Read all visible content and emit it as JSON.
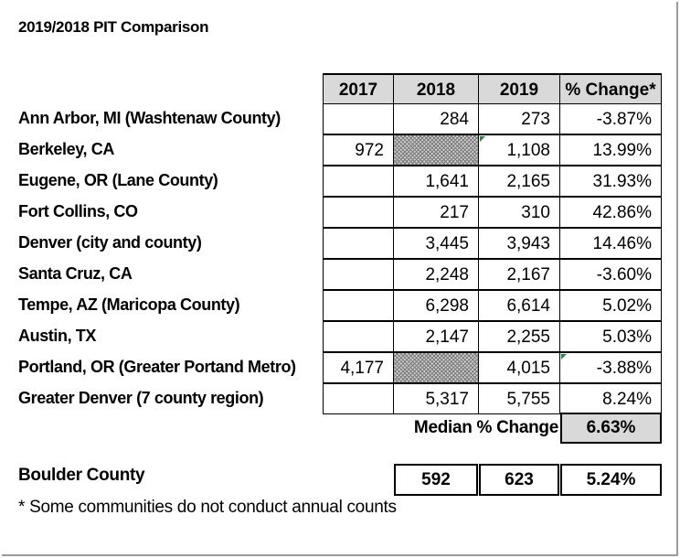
{
  "title": "2019/2018 PIT Comparison",
  "chart_data": {
    "type": "table",
    "title": "2019/2018 PIT Comparison",
    "columns": [
      "2017",
      "2018",
      "2019",
      "% Change*"
    ],
    "rows": [
      {
        "label": "Ann Arbor, MI (Washtenaw County)",
        "cells": [
          "",
          "284",
          "273",
          "-3.87%"
        ],
        "hatched": []
      },
      {
        "label": "Berkeley, CA",
        "cells": [
          "972",
          "",
          "1,108",
          "13.99%"
        ],
        "hatched": [
          1
        ],
        "flag": 2
      },
      {
        "label": "Eugene, OR (Lane County)",
        "cells": [
          "",
          "1,641",
          "2,165",
          "31.93%"
        ],
        "hatched": []
      },
      {
        "label": "Fort Collins, CO",
        "cells": [
          "",
          "217",
          "310",
          "42.86%"
        ],
        "hatched": []
      },
      {
        "label": "Denver (city and county)",
        "cells": [
          "",
          "3,445",
          "3,943",
          "14.46%"
        ],
        "hatched": []
      },
      {
        "label": "Santa Cruz, CA",
        "cells": [
          "",
          "2,248",
          "2,167",
          "-3.60%"
        ],
        "hatched": []
      },
      {
        "label": "Tempe, AZ (Maricopa County)",
        "cells": [
          "",
          "6,298",
          "6,614",
          "5.02%"
        ],
        "hatched": []
      },
      {
        "label": "Austin, TX",
        "cells": [
          "",
          "2,147",
          "2,255",
          "5.03%"
        ],
        "hatched": []
      },
      {
        "label": "Portland, OR (Greater Portand Metro)",
        "cells": [
          "4,177",
          "",
          "4,015",
          "-3.88%"
        ],
        "hatched": [
          1
        ],
        "flag": 3
      },
      {
        "label": "Greater Denver (7 county region)",
        "cells": [
          "",
          "5,317",
          "5,755",
          "8.24%"
        ],
        "hatched": []
      }
    ],
    "median": {
      "label": "Median % Change",
      "value": "6.63%"
    },
    "boulder": {
      "label": "Boulder County",
      "cells": [
        "592",
        "623",
        "5.24%"
      ]
    },
    "footnote": "* Some communities do not conduct annual counts"
  }
}
